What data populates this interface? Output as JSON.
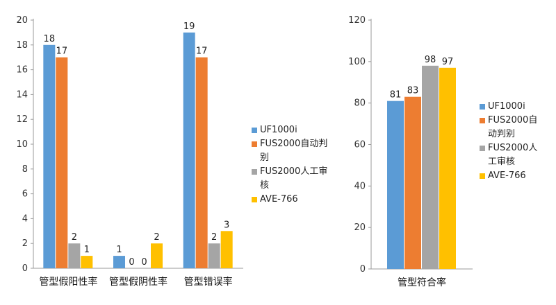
{
  "chart_data": [
    {
      "type": "bar",
      "categories": [
        "管型假阳性率",
        "管型假阴性率",
        "管型错误率"
      ],
      "series": [
        {
          "name": "UF1000i",
          "values": [
            18,
            1,
            19
          ],
          "color": "#5b9bd5"
        },
        {
          "name": "FUS2000自动判别",
          "values": [
            17,
            0,
            17
          ],
          "color": "#ed7d31"
        },
        {
          "name": "FUS2000人工审核",
          "values": [
            2,
            0,
            2
          ],
          "color": "#a5a5a5"
        },
        {
          "name": "AVE-766",
          "values": [
            1,
            2,
            3
          ],
          "color": "#ffc000"
        }
      ],
      "y_ticks": [
        0,
        2,
        4,
        6,
        8,
        10,
        12,
        14,
        16,
        18,
        20
      ],
      "ylim": [
        0,
        20
      ],
      "grid": false,
      "legend_position": "right"
    },
    {
      "type": "bar",
      "categories": [
        "管型符合率"
      ],
      "series": [
        {
          "name": "UF1000i",
          "values": [
            81
          ],
          "color": "#5b9bd5"
        },
        {
          "name": "FUS2000自动判别",
          "values": [
            83
          ],
          "color": "#ed7d31"
        },
        {
          "name": "FUS2000人工审核",
          "values": [
            98
          ],
          "color": "#a5a5a5"
        },
        {
          "name": "AVE-766",
          "values": [
            97
          ],
          "color": "#ffc000"
        }
      ],
      "y_ticks": [
        0,
        20,
        40,
        60,
        80,
        100,
        120
      ],
      "ylim": [
        0,
        120
      ],
      "grid": false,
      "legend_position": "right"
    }
  ],
  "legends": {
    "left": [
      {
        "lines": [
          "UF1000i"
        ],
        "color": "#5b9bd5"
      },
      {
        "lines": [
          "FUS2000自动判别"
        ],
        "color": "#ed7d31"
      },
      {
        "lines": [
          "FUS2000人工审核"
        ],
        "color": "#a5a5a5"
      },
      {
        "lines": [
          "AVE-766"
        ],
        "color": "#ffc000"
      }
    ],
    "right": [
      {
        "lines": [
          "UF1000i"
        ],
        "color": "#5b9bd5"
      },
      {
        "lines": [
          "FUS2000自",
          "动判别"
        ],
        "color": "#ed7d31"
      },
      {
        "lines": [
          "FUS2000人",
          "工审核"
        ],
        "color": "#a5a5a5"
      },
      {
        "lines": [
          "AVE-766"
        ],
        "color": "#ffc000"
      }
    ]
  }
}
